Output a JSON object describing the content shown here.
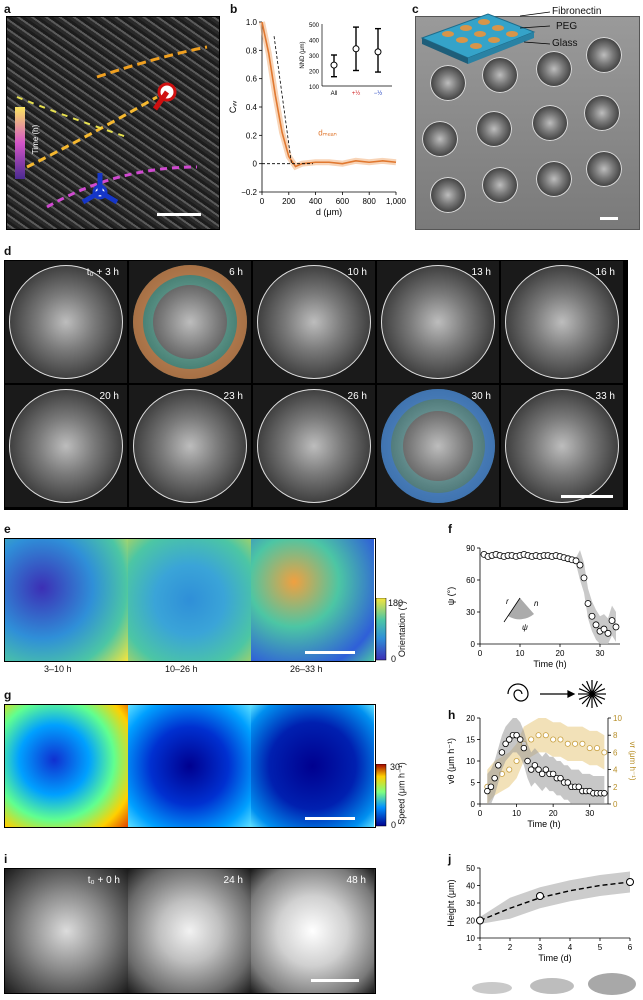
{
  "labels": {
    "a": "a",
    "b": "b",
    "c": "c",
    "d": "d",
    "e": "e",
    "f": "f",
    "g": "g",
    "h": "h",
    "i": "i",
    "j": "j"
  },
  "panel_a": {
    "colorbar_label": "Time (h)"
  },
  "panel_c": {
    "fibronectin": "Fibronectin",
    "peg": "PEG",
    "glass": "Glass"
  },
  "panel_d": {
    "times": [
      "t₀ + 3 h",
      "6 h",
      "10 h",
      "13 h",
      "16 h",
      "20 h",
      "23 h",
      "26 h",
      "30 h",
      "33 h"
    ]
  },
  "panel_e": {
    "windows": [
      "3–10 h",
      "10–26 h",
      "26–33 h"
    ],
    "cbar_label": "Orientation (°)",
    "cbar_max": "180",
    "cbar_min": "0"
  },
  "panel_g": {
    "cbar_label": "Speed (μm h⁻¹)",
    "cbar_max": "30",
    "cbar_min": "0"
  },
  "panel_i": {
    "times": [
      "t₀ + 0 h",
      "24 h",
      "48 h"
    ]
  },
  "chart_data": [
    {
      "id": "b",
      "type": "line",
      "xlabel": "d (μm)",
      "ylabel": "Cᵥᵥ",
      "xlim": [
        0,
        1000
      ],
      "ylim": [
        -0.2,
        1.0
      ],
      "xticks": [
        "0",
        "200",
        "400",
        "600",
        "800",
        "1,000"
      ],
      "yticks": [
        "−0.2",
        "0",
        "0.2",
        "0.4",
        "0.6",
        "0.8",
        "1.0"
      ],
      "annotation": "dₘₑₐₙ",
      "x": [
        0,
        50,
        100,
        150,
        200,
        250,
        300,
        400,
        500,
        600,
        700,
        800,
        900,
        1000
      ],
      "y": [
        1.0,
        0.78,
        0.48,
        0.22,
        0.05,
        -0.02,
        0.0,
        0.01,
        0.01,
        0.0,
        0.02,
        0.01,
        0.02,
        0.01
      ],
      "inset": {
        "type": "scatter",
        "ylabel": "NND (μm)",
        "categories": [
          "All",
          "+½",
          "−½"
        ],
        "yticks": [
          "100",
          "200",
          "300",
          "400",
          "500"
        ],
        "values": [
          235,
          340,
          320
        ],
        "err_low": [
          160,
          200,
          190
        ],
        "err_high": [
          300,
          480,
          470
        ]
      }
    },
    {
      "id": "f",
      "type": "scatter",
      "xlabel": "Time (h)",
      "ylabel": "ψ (°)",
      "xlim": [
        0,
        35
      ],
      "ylim": [
        0,
        90
      ],
      "xticks": [
        "0",
        "10",
        "20",
        "30"
      ],
      "yticks": [
        "0",
        "30",
        "60",
        "90"
      ],
      "diagram_labels": [
        "r",
        "n",
        "ψ"
      ],
      "x": [
        1,
        2,
        3,
        4,
        5,
        6,
        7,
        8,
        9,
        10,
        11,
        12,
        13,
        14,
        15,
        16,
        17,
        18,
        19,
        20,
        21,
        22,
        23,
        24,
        25,
        26,
        27,
        28,
        29,
        30,
        31,
        32,
        33,
        34
      ],
      "y": [
        84,
        82,
        83,
        84,
        83,
        82,
        83,
        83,
        82,
        83,
        84,
        83,
        82,
        83,
        82,
        83,
        83,
        82,
        83,
        82,
        81,
        80,
        79,
        78,
        74,
        62,
        38,
        26,
        18,
        12,
        14,
        10,
        22,
        16
      ]
    },
    {
      "id": "h",
      "type": "scatter",
      "xlabel": "Time (h)",
      "ylabel": "vθ (μm h⁻¹)",
      "y2label": "vr (μm h⁻¹)",
      "xlim": [
        0,
        35
      ],
      "ylim": [
        0,
        20
      ],
      "y2lim": [
        0,
        10
      ],
      "xticks": [
        "0",
        "10",
        "20",
        "30"
      ],
      "yticks": [
        "0",
        "5",
        "10",
        "15",
        "20"
      ],
      "y2ticks": [
        "0",
        "2",
        "4",
        "6",
        "8",
        "10"
      ],
      "series": [
        {
          "name": "vθ",
          "x": [
            2,
            3,
            4,
            5,
            6,
            7,
            8,
            9,
            10,
            11,
            12,
            13,
            14,
            15,
            16,
            17,
            18,
            19,
            20,
            21,
            22,
            23,
            24,
            25,
            26,
            27,
            28,
            29,
            30,
            31,
            32,
            33,
            34
          ],
          "y": [
            3,
            4,
            6,
            9,
            12,
            14,
            15,
            16,
            16,
            15,
            13,
            10,
            8,
            9,
            8,
            7,
            8,
            7,
            7,
            6,
            6,
            5,
            5,
            4,
            4,
            4,
            3,
            3,
            3,
            2.5,
            2.5,
            2.5,
            2.5
          ]
        },
        {
          "name": "vr",
          "x": [
            2,
            4,
            6,
            8,
            10,
            12,
            14,
            16,
            18,
            20,
            22,
            24,
            26,
            28,
            30,
            32,
            34
          ],
          "y": [
            2,
            3,
            3.5,
            4,
            5,
            7,
            7.5,
            8,
            8,
            7.5,
            7.5,
            7,
            7,
            7,
            6.5,
            6.5,
            6
          ]
        }
      ]
    },
    {
      "id": "j",
      "type": "line",
      "xlabel": "Time (d)",
      "ylabel": "Height (μm)",
      "xlim": [
        1,
        6
      ],
      "ylim": [
        10,
        50
      ],
      "xticks": [
        "1",
        "2",
        "3",
        "4",
        "5",
        "6"
      ],
      "yticks": [
        "10",
        "20",
        "30",
        "40",
        "50"
      ],
      "x": [
        1,
        3,
        6
      ],
      "y": [
        20,
        34,
        42
      ]
    }
  ]
}
